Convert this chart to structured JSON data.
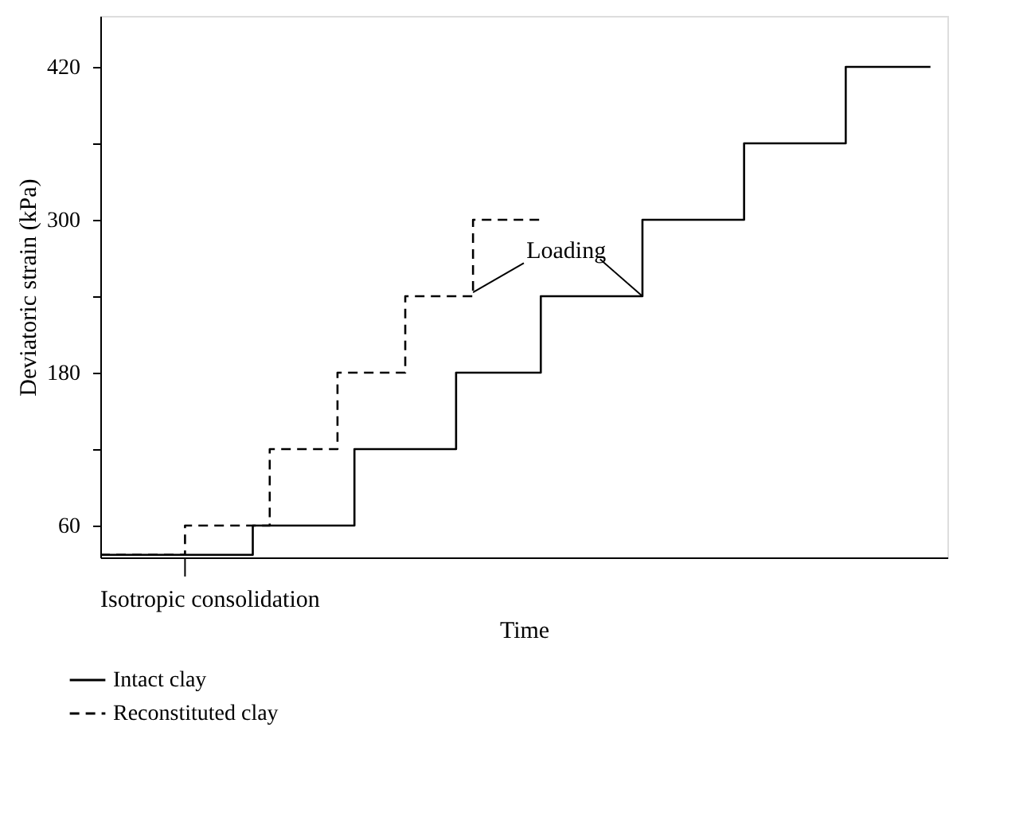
{
  "chart_data": {
    "type": "step",
    "xlabel": "Time",
    "ylabel": "Deviatoric strain (kPa)",
    "categories": [
      null,
      null,
      null,
      null,
      null,
      null,
      null,
      null,
      null,
      null,
      null,
      null,
      null,
      null,
      null,
      null,
      null,
      null,
      null,
      null,
      null,
      null,
      null,
      null,
      null,
      null,
      null,
      null,
      null,
      null,
      null,
      null,
      null,
      null,
      null,
      null,
      null,
      null,
      null,
      null,
      null,
      null,
      null,
      null,
      null,
      null,
      null,
      null,
      null,
      null
    ],
    "ylim": [
      35,
      460
    ],
    "yticks": [
      60,
      {
        "value": 120,
        "label": null
      },
      180,
      {
        "value": 240,
        "label": null
      },
      300,
      {
        "value": 360,
        "label": null
      },
      420
    ],
    "tick_labels": "y",
    "grid": false,
    "legend": "bottom left",
    "series": [
      {
        "name": "Intact clay",
        "color": "#000000",
        "line_style": "solid",
        "values": [
          37,
          37,
          37,
          37,
          37,
          37,
          37,
          37,
          37,
          60,
          60,
          60,
          60,
          60,
          60,
          120,
          120,
          120,
          120,
          120,
          120,
          180,
          180,
          180,
          180,
          180,
          240,
          240,
          240,
          240,
          240,
          240,
          300,
          300,
          300,
          300,
          300,
          300,
          360,
          360,
          360,
          360,
          360,
          360,
          420,
          420,
          420,
          420,
          420,
          420
        ]
      },
      {
        "name": "Reconstituted clay",
        "color": "#000000",
        "line_style": "dashed",
        "values": [
          37,
          37,
          37,
          37,
          37,
          60,
          60,
          60,
          60,
          60,
          120,
          120,
          120,
          120,
          180,
          180,
          180,
          180,
          240,
          240,
          240,
          240,
          300,
          300,
          300,
          300,
          300,
          null,
          null,
          null,
          null,
          null,
          null,
          null,
          null,
          null,
          null,
          null,
          null,
          null,
          null,
          null,
          null,
          null,
          null,
          null,
          null,
          null,
          null,
          null
        ]
      }
    ],
    "annotations": [
      "Loading",
      "Isotropic consolidation"
    ]
  }
}
